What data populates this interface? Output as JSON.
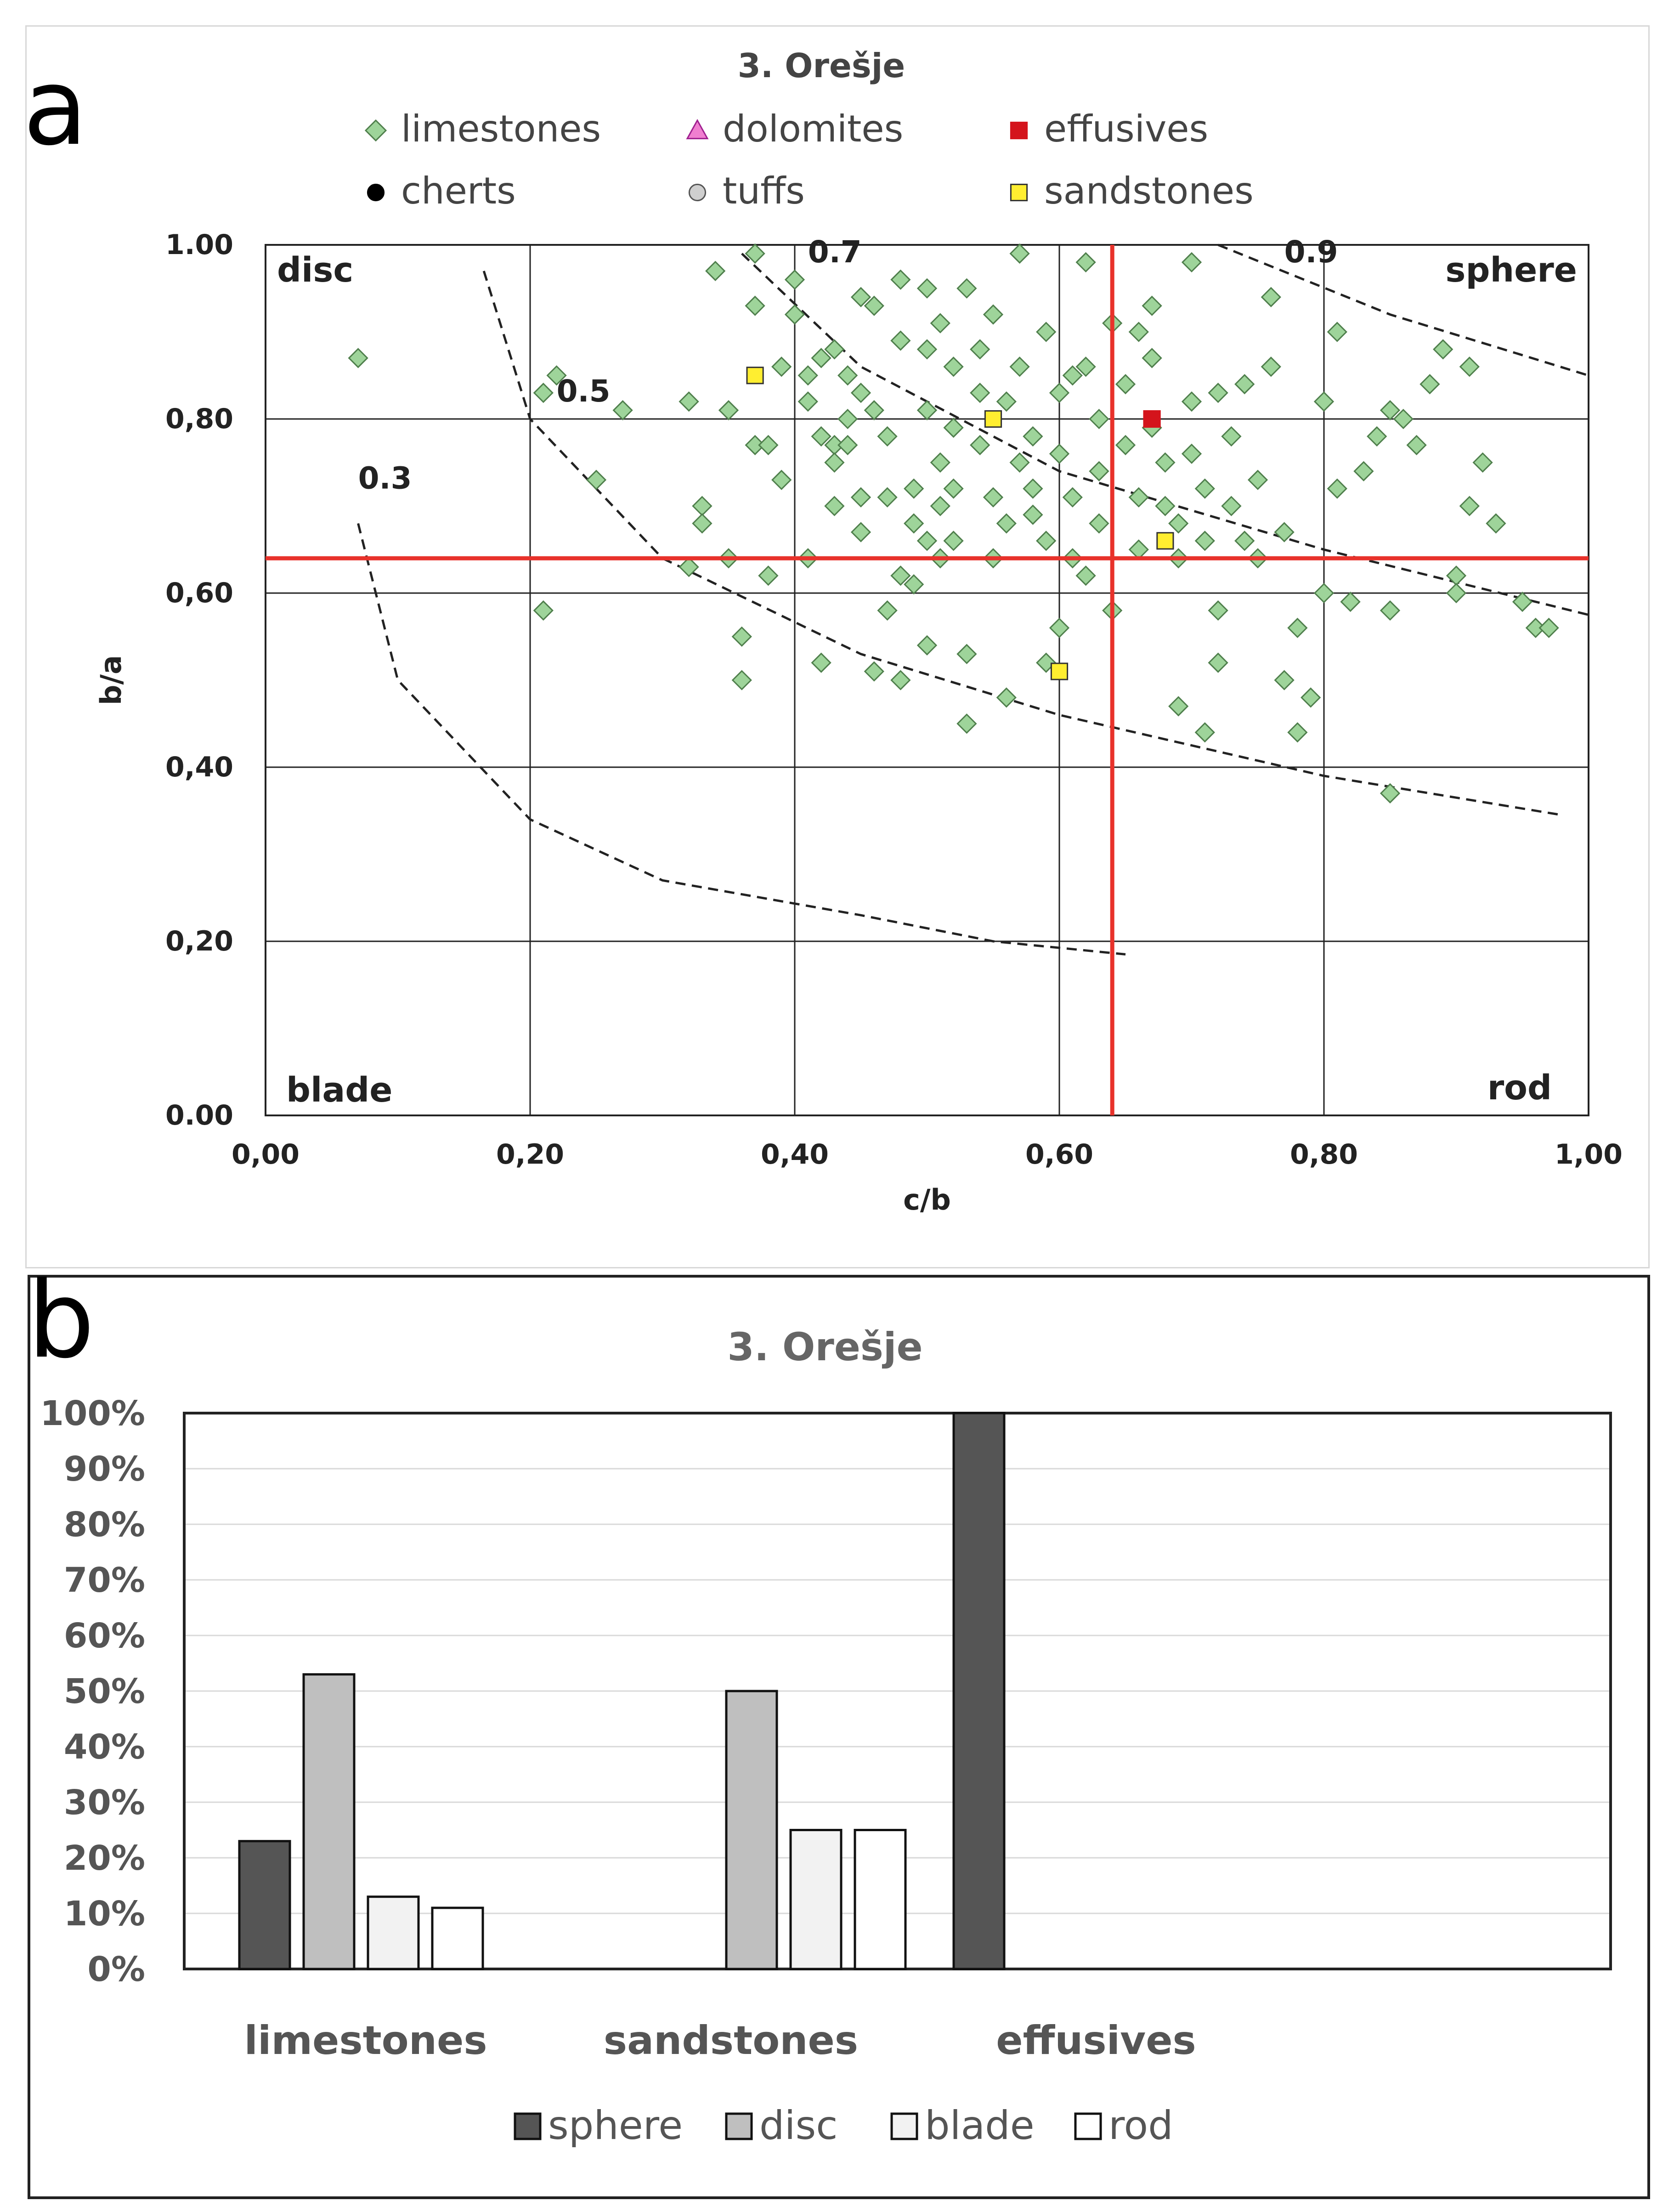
{
  "figure": {
    "panel_a_letter": "a",
    "panel_b_letter": "b"
  },
  "chart_data": [
    {
      "type": "scatter",
      "title": "3. Orešje",
      "xlabel": "c/b",
      "ylabel": "b/a",
      "xlim": [
        0.0,
        1.0
      ],
      "ylim": [
        0.0,
        1.0
      ],
      "x_tick_labels": [
        "0,00",
        "0,20",
        "0,40",
        "0,60",
        "0,80",
        "1,00"
      ],
      "y_tick_labels": [
        "0.00",
        "0,20",
        "0,40",
        "0,60",
        "0,80",
        "1.00"
      ],
      "grid": true,
      "quadrant_labels": {
        "top_left": "disc",
        "top_right": "sphere",
        "bottom_left": "blade",
        "bottom_right": "rod"
      },
      "reference_lines": {
        "vertical_x": 0.64,
        "horizontal_y": 0.64,
        "color": "#e8322b"
      },
      "sphericity_curves": [
        {
          "label": "0.3",
          "label_at": [
            0.07,
            0.72
          ],
          "points": [
            [
              0.07,
              0.68
            ],
            [
              0.1,
              0.5
            ],
            [
              0.2,
              0.34
            ],
            [
              0.3,
              0.27
            ],
            [
              0.45,
              0.23
            ],
            [
              0.55,
              0.2
            ],
            [
              0.65,
              0.185
            ]
          ]
        },
        {
          "label": "0.5",
          "label_at": [
            0.22,
            0.82
          ],
          "points": [
            [
              0.165,
              0.97
            ],
            [
              0.2,
              0.8
            ],
            [
              0.3,
              0.64
            ],
            [
              0.45,
              0.53
            ],
            [
              0.6,
              0.46
            ],
            [
              0.8,
              0.39
            ],
            [
              0.98,
              0.345
            ]
          ]
        },
        {
          "label": "0.7",
          "label_at": [
            0.41,
            0.98
          ],
          "points": [
            [
              0.36,
              0.99
            ],
            [
              0.45,
              0.86
            ],
            [
              0.6,
              0.74
            ],
            [
              0.8,
              0.65
            ],
            [
              1.0,
              0.575
            ]
          ]
        },
        {
          "label": "0.9",
          "label_at": [
            0.77,
            0.98
          ],
          "points": [
            [
              0.72,
              1.0
            ],
            [
              0.85,
              0.92
            ],
            [
              1.0,
              0.85
            ]
          ]
        }
      ],
      "legend": [
        {
          "name": "limestones",
          "marker": "diamond",
          "color": "#9ed49a",
          "edge": "#4f7f4c"
        },
        {
          "name": "dolomites",
          "marker": "triangle",
          "color": "#f07fd0",
          "edge": "#a02090"
        },
        {
          "name": "effusives",
          "marker": "square",
          "color": "#d4141c",
          "edge": "#d4141c"
        },
        {
          "name": "cherts",
          "marker": "circle",
          "color": "#000000",
          "edge": "#000000"
        },
        {
          "name": "tuffs",
          "marker": "circle",
          "color": "#cfcfcf",
          "edge": "#555555"
        },
        {
          "name": "sandstones",
          "marker": "square",
          "color": "#ffee30",
          "edge": "#333333"
        }
      ],
      "series": [
        {
          "name": "limestones",
          "points": [
            [
              0.07,
              0.87
            ],
            [
              0.21,
              0.58
            ],
            [
              0.21,
              0.83
            ],
            [
              0.22,
              0.85
            ],
            [
              0.25,
              0.73
            ],
            [
              0.27,
              0.81
            ],
            [
              0.32,
              0.82
            ],
            [
              0.32,
              0.63
            ],
            [
              0.33,
              0.7
            ],
            [
              0.33,
              0.68
            ],
            [
              0.34,
              0.97
            ],
            [
              0.35,
              0.81
            ],
            [
              0.35,
              0.64
            ],
            [
              0.36,
              0.55
            ],
            [
              0.36,
              0.5
            ],
            [
              0.37,
              0.77
            ],
            [
              0.37,
              0.99
            ],
            [
              0.37,
              0.93
            ],
            [
              0.38,
              0.62
            ],
            [
              0.38,
              0.77
            ],
            [
              0.39,
              0.86
            ],
            [
              0.39,
              0.73
            ],
            [
              0.4,
              0.96
            ],
            [
              0.4,
              0.92
            ],
            [
              0.41,
              0.85
            ],
            [
              0.41,
              0.82
            ],
            [
              0.41,
              0.64
            ],
            [
              0.42,
              0.87
            ],
            [
              0.42,
              0.78
            ],
            [
              0.42,
              0.52
            ],
            [
              0.43,
              0.88
            ],
            [
              0.43,
              0.77
            ],
            [
              0.43,
              0.75
            ],
            [
              0.44,
              0.8
            ],
            [
              0.44,
              0.77
            ],
            [
              0.44,
              0.85
            ],
            [
              0.45,
              0.71
            ],
            [
              0.45,
              0.67
            ],
            [
              0.45,
              0.83
            ],
            [
              0.45,
              0.94
            ],
            [
              0.46,
              0.93
            ],
            [
              0.46,
              0.81
            ],
            [
              0.46,
              0.51
            ],
            [
              0.47,
              0.71
            ],
            [
              0.47,
              0.78
            ],
            [
              0.48,
              0.62
            ],
            [
              0.48,
              0.89
            ],
            [
              0.48,
              0.96
            ],
            [
              0.48,
              0.5
            ],
            [
              0.49,
              0.72
            ],
            [
              0.49,
              0.68
            ],
            [
              0.49,
              0.61
            ],
            [
              0.5,
              0.95
            ],
            [
              0.5,
              0.88
            ],
            [
              0.5,
              0.81
            ],
            [
              0.5,
              0.54
            ],
            [
              0.51,
              0.7
            ],
            [
              0.51,
              0.75
            ],
            [
              0.51,
              0.91
            ],
            [
              0.51,
              0.64
            ],
            [
              0.52,
              0.86
            ],
            [
              0.52,
              0.79
            ],
            [
              0.52,
              0.72
            ],
            [
              0.52,
              0.66
            ],
            [
              0.53,
              0.95
            ],
            [
              0.53,
              0.53
            ],
            [
              0.53,
              0.45
            ],
            [
              0.54,
              0.83
            ],
            [
              0.54,
              0.77
            ],
            [
              0.54,
              0.88
            ],
            [
              0.55,
              0.71
            ],
            [
              0.55,
              0.64
            ],
            [
              0.55,
              0.92
            ],
            [
              0.56,
              0.82
            ],
            [
              0.56,
              0.68
            ],
            [
              0.56,
              0.48
            ],
            [
              0.57,
              0.75
            ],
            [
              0.57,
              0.86
            ],
            [
              0.57,
              0.99
            ],
            [
              0.58,
              0.78
            ],
            [
              0.58,
              0.72
            ],
            [
              0.59,
              0.66
            ],
            [
              0.59,
              0.9
            ],
            [
              0.59,
              0.52
            ],
            [
              0.6,
              0.83
            ],
            [
              0.6,
              0.76
            ],
            [
              0.6,
              0.56
            ],
            [
              0.61,
              0.71
            ],
            [
              0.61,
              0.64
            ],
            [
              0.62,
              0.86
            ],
            [
              0.62,
              0.98
            ],
            [
              0.62,
              0.62
            ],
            [
              0.63,
              0.8
            ],
            [
              0.63,
              0.74
            ],
            [
              0.63,
              0.68
            ],
            [
              0.64,
              0.58
            ],
            [
              0.64,
              0.91
            ],
            [
              0.65,
              0.84
            ],
            [
              0.65,
              0.77
            ],
            [
              0.66,
              0.71
            ],
            [
              0.66,
              0.65
            ],
            [
              0.67,
              0.87
            ],
            [
              0.67,
              0.79
            ],
            [
              0.67,
              0.93
            ],
            [
              0.68,
              0.75
            ],
            [
              0.68,
              0.7
            ],
            [
              0.69,
              0.64
            ],
            [
              0.69,
              0.47
            ],
            [
              0.7,
              0.82
            ],
            [
              0.7,
              0.76
            ],
            [
              0.7,
              0.98
            ],
            [
              0.71,
              0.72
            ],
            [
              0.71,
              0.66
            ],
            [
              0.71,
              0.44
            ],
            [
              0.72,
              0.83
            ],
            [
              0.72,
              0.58
            ],
            [
              0.72,
              0.52
            ],
            [
              0.73,
              0.78
            ],
            [
              0.73,
              0.7
            ],
            [
              0.74,
              0.84
            ],
            [
              0.75,
              0.73
            ],
            [
              0.75,
              0.64
            ],
            [
              0.76,
              0.86
            ],
            [
              0.76,
              0.94
            ],
            [
              0.77,
              0.67
            ],
            [
              0.77,
              0.5
            ],
            [
              0.78,
              0.44
            ],
            [
              0.78,
              0.56
            ],
            [
              0.79,
              0.48
            ],
            [
              0.8,
              0.82
            ],
            [
              0.8,
              0.6
            ],
            [
              0.81,
              0.9
            ],
            [
              0.81,
              0.72
            ],
            [
              0.82,
              0.59
            ],
            [
              0.83,
              0.74
            ],
            [
              0.84,
              0.78
            ],
            [
              0.85,
              0.81
            ],
            [
              0.85,
              0.58
            ],
            [
              0.85,
              0.37
            ],
            [
              0.86,
              0.8
            ],
            [
              0.87,
              0.77
            ],
            [
              0.88,
              0.84
            ],
            [
              0.89,
              0.88
            ],
            [
              0.9,
              0.62
            ],
            [
              0.9,
              0.6
            ],
            [
              0.91,
              0.86
            ],
            [
              0.91,
              0.7
            ],
            [
              0.92,
              0.75
            ],
            [
              0.93,
              0.68
            ],
            [
              0.95,
              0.59
            ],
            [
              0.96,
              0.56
            ],
            [
              0.97,
              0.56
            ],
            [
              0.58,
              0.69
            ],
            [
              0.43,
              0.7
            ],
            [
              0.47,
              0.58
            ],
            [
              0.61,
              0.85
            ],
            [
              0.66,
              0.9
            ],
            [
              0.69,
              0.68
            ],
            [
              0.74,
              0.66
            ],
            [
              0.5,
              0.66
            ]
          ]
        },
        {
          "name": "sandstones",
          "points": [
            [
              0.37,
              0.85
            ],
            [
              0.55,
              0.8
            ],
            [
              0.6,
              0.51
            ],
            [
              0.68,
              0.66
            ]
          ]
        },
        {
          "name": "effusives",
          "points": [
            [
              0.67,
              0.8
            ]
          ]
        },
        {
          "name": "dolomites",
          "points": []
        },
        {
          "name": "cherts",
          "points": []
        },
        {
          "name": "tuffs",
          "points": []
        }
      ]
    },
    {
      "type": "bar",
      "title": "3. Orešje",
      "categories": [
        "limestones",
        "sandstones",
        "effusives"
      ],
      "ylim": [
        0,
        100
      ],
      "y_tick_labels": [
        "0%",
        "10%",
        "20%",
        "30%",
        "40%",
        "50%",
        "60%",
        "70%",
        "80%",
        "90%",
        "100%"
      ],
      "legend_position": "bottom",
      "series": [
        {
          "name": "sphere",
          "color": "#555555",
          "values": [
            23,
            0,
            100
          ]
        },
        {
          "name": "disc",
          "color": "#bfbfbf",
          "values": [
            53,
            50,
            0
          ]
        },
        {
          "name": "blade",
          "color": "#f2f2f2",
          "values": [
            13,
            25,
            0
          ]
        },
        {
          "name": "rod",
          "color": "#ffffff",
          "values": [
            11,
            25,
            0
          ]
        }
      ]
    }
  ]
}
